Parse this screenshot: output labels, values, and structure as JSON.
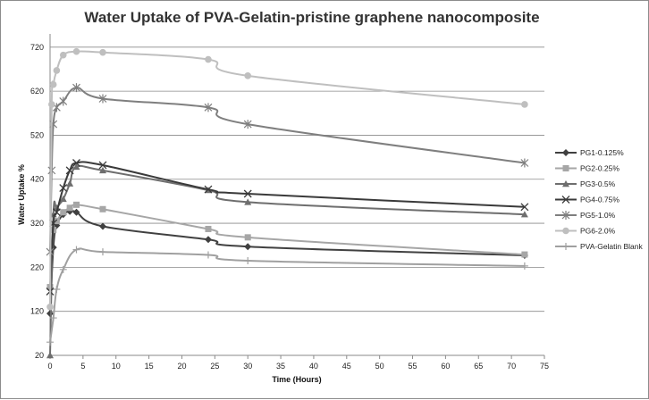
{
  "chart_data": {
    "type": "line",
    "title": "Water Uptake of PVA-Gelatin-pristine graphene nanocomposite",
    "xlabel": "Time (Hours)",
    "ylabel": "Water Uptake %",
    "xlim": [
      0,
      75
    ],
    "ylim": [
      20,
      750
    ],
    "x_ticks": [
      0,
      5,
      10,
      15,
      20,
      25,
      30,
      35,
      40,
      45,
      50,
      55,
      60,
      65,
      70,
      75
    ],
    "y_ticks": [
      20,
      120,
      220,
      320,
      420,
      520,
      620,
      720
    ],
    "grid": "horizontal",
    "legend_position": "right",
    "series": [
      {
        "name": "PG1-0.125%",
        "color": "#404040",
        "marker": "diamond",
        "x": [
          0,
          0.5,
          1,
          2,
          3,
          4,
          8,
          24,
          30,
          72
        ],
        "y": [
          115,
          265,
          315,
          340,
          347,
          345,
          313,
          283,
          267,
          247
        ]
      },
      {
        "name": "PG2-0.25%",
        "color": "#a6a6a6",
        "marker": "square",
        "x": [
          0,
          0.5,
          1,
          2,
          3,
          4,
          8,
          24,
          30,
          72
        ],
        "y": [
          175,
          305,
          325,
          345,
          355,
          362,
          352,
          307,
          288,
          249
        ]
      },
      {
        "name": "PG3-0.5%",
        "color": "#6e6e6e",
        "marker": "triangle",
        "x": [
          0,
          0.5,
          1,
          2,
          3,
          4,
          8,
          24,
          30,
          72
        ],
        "y": [
          20,
          340,
          355,
          375,
          410,
          448,
          440,
          395,
          368,
          340
        ]
      },
      {
        "name": "PG4-0.75%",
        "color": "#3a3a3a",
        "marker": "x",
        "x": [
          0,
          0.5,
          1,
          2,
          3,
          4,
          8,
          24,
          30,
          72
        ],
        "y": [
          165,
          320,
          345,
          400,
          440,
          457,
          452,
          397,
          387,
          357
        ]
      },
      {
        "name": "PG5-1.0%",
        "color": "#7f7f7f",
        "marker": "star",
        "x": [
          0,
          0.25,
          0.5,
          1,
          2,
          4,
          8,
          24,
          30,
          72
        ],
        "y": [
          255,
          440,
          545,
          583,
          597,
          628,
          603,
          583,
          545,
          457
        ]
      },
      {
        "name": "PG6-2.0%",
        "color": "#bfbfbf",
        "marker": "circle",
        "x": [
          0,
          0.25,
          0.5,
          1,
          2,
          4,
          8,
          24,
          30,
          72
        ],
        "y": [
          130,
          590,
          635,
          667,
          702,
          710,
          708,
          692,
          655,
          590
        ]
      },
      {
        "name": "PVA-Gelatin Blank",
        "color": "#a0a0a0",
        "marker": "plus",
        "x": [
          0,
          0.5,
          1,
          2,
          4,
          8,
          24,
          30,
          72
        ],
        "y": [
          50,
          105,
          170,
          215,
          260,
          255,
          248,
          235,
          223
        ]
      }
    ]
  }
}
